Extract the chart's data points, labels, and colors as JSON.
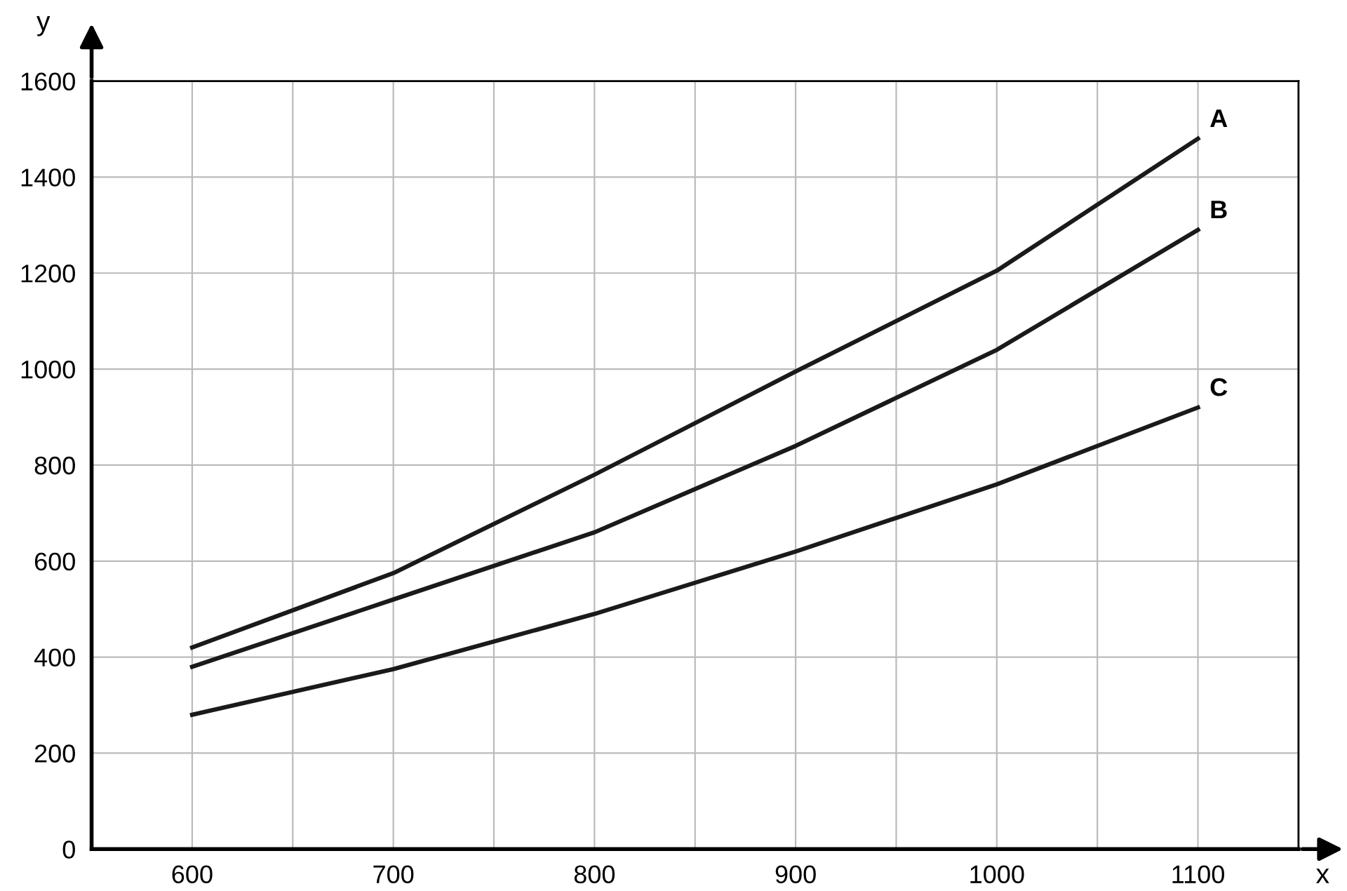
{
  "chart_data": {
    "type": "line",
    "xlabel": "x",
    "ylabel": "y",
    "x": [
      600,
      700,
      800,
      900,
      1000,
      1100
    ],
    "series": [
      {
        "name": "A",
        "color": "#1a1a1a",
        "values": [
          420,
          575,
          780,
          995,
          1205,
          1480
        ]
      },
      {
        "name": "B",
        "color": "#1a1a1a",
        "values": [
          380,
          520,
          660,
          840,
          1040,
          1290
        ]
      },
      {
        "name": "C",
        "color": "#1a1a1a",
        "values": [
          280,
          375,
          490,
          620,
          760,
          920
        ]
      }
    ],
    "xlim": [
      550,
      1150
    ],
    "ylim": [
      0,
      1600
    ],
    "xticks": [
      {
        "value": 550,
        "label": null
      },
      600,
      {
        "value": 650,
        "label": null
      },
      700,
      {
        "value": 750,
        "label": null
      },
      800,
      {
        "value": 850,
        "label": null
      },
      900,
      {
        "value": 950,
        "label": null
      },
      1000,
      {
        "value": 1050,
        "label": null
      },
      1100,
      {
        "value": 1150,
        "label": null
      }
    ],
    "yticks": [
      0,
      200,
      400,
      600,
      800,
      1000,
      1200,
      1400,
      1600
    ],
    "grid": true,
    "legend": false,
    "marker": "none",
    "line_style": "solid"
  }
}
